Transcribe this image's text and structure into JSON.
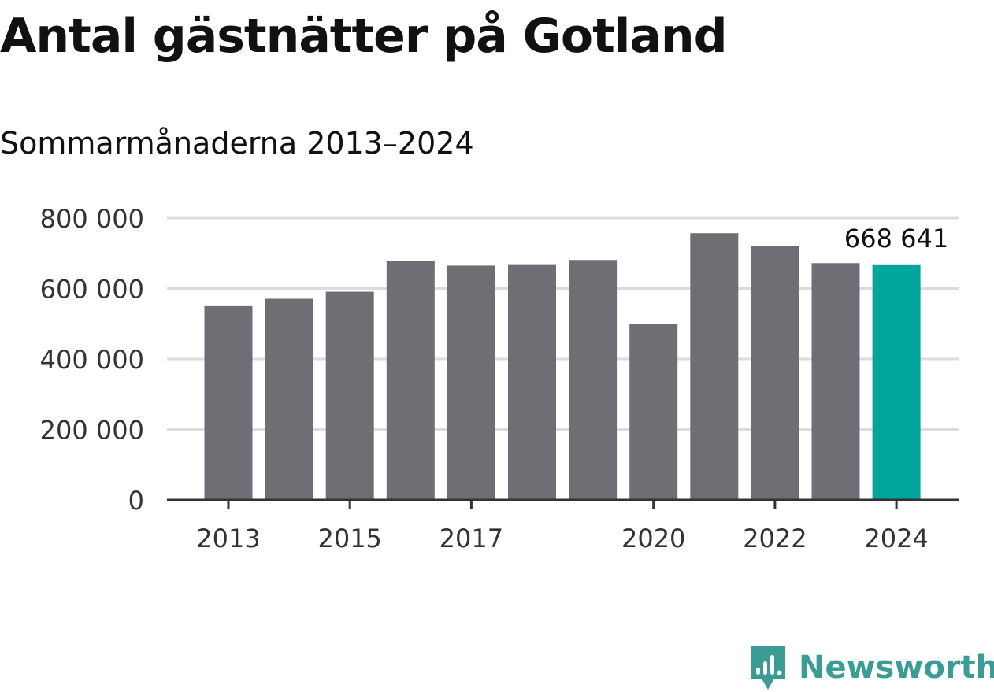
{
  "chart_data": {
    "type": "bar",
    "title": "Antal gästnätter på Gotland",
    "subtitle": "Sommarmånaderna 2013–2024",
    "xlabel": "",
    "ylabel": "",
    "categories": [
      "2013",
      "2014",
      "2015",
      "2016",
      "2017",
      "2018",
      "2019",
      "2020",
      "2021",
      "2022",
      "2023",
      "2024"
    ],
    "x_tick_labels": [
      "2013",
      "",
      "2015",
      "",
      "2017",
      "",
      "",
      "2020",
      "",
      "2022",
      "",
      "2024"
    ],
    "values": [
      550000,
      571000,
      591000,
      679000,
      665000,
      669000,
      681000,
      500000,
      757000,
      721000,
      672000,
      668641
    ],
    "ylim": [
      0,
      800000
    ],
    "y_ticks": [
      0,
      200000,
      400000,
      600000,
      800000
    ],
    "y_tick_labels": [
      "0",
      "200 000",
      "400 000",
      "600 000",
      "800 000"
    ],
    "highlight_index": 11,
    "highlight_label": "668 641",
    "grid": true,
    "colors": {
      "bar": "#6f6e75",
      "highlight": "#00a69c",
      "grid": "#dcdcdc",
      "axis": "#333333",
      "tick_text": "#333333",
      "label_text": "#111111"
    }
  },
  "brand": {
    "name": "Newsworthy",
    "icon": "newsworthy-logo-icon",
    "color": "#3a9c95"
  }
}
